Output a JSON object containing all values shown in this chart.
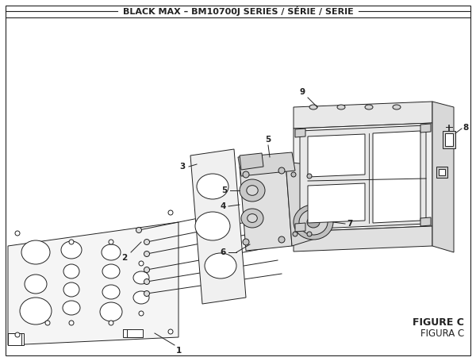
{
  "title": "BLACK MAX – BM10700J SERIES / SÉRIE / SERIE",
  "figure_label": "FIGURE C",
  "figure_label2": "FIGURA C",
  "bg_color": "#ffffff",
  "border_color": "#222222",
  "text_color": "#222222",
  "title_fontsize": 8.0,
  "label_fontsize": 7.5,
  "figure_label_fontsize": 9.0,
  "lw": 0.7
}
